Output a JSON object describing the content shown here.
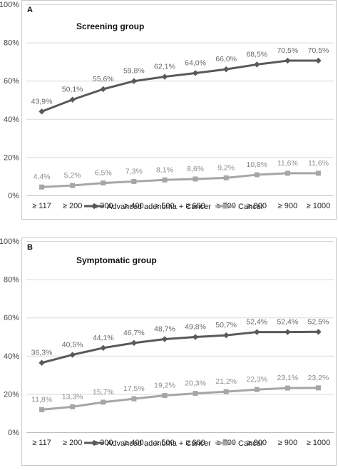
{
  "colors": {
    "dark_series": "#595959",
    "light_series": "#a6a6a6",
    "dark_label": "#666666",
    "light_label": "#8c8c8c",
    "grid": "#d9d9d9",
    "axis": "#bfbfbf",
    "border": "#c8c8c8"
  },
  "chart_data": [
    {
      "type": "line",
      "panel": "A",
      "title": "Screening group",
      "categories": [
        "≥ 117",
        "≥ 200",
        "≥ 300",
        "≥ 400",
        "≥ 500",
        "≥ 600",
        "≥ 700",
        "≥ 800",
        "≥ 900",
        "≥ 1000"
      ],
      "yticks": [
        "0%",
        "20%",
        "40%",
        "60%",
        "80%",
        "100%"
      ],
      "ylim": [
        0,
        100
      ],
      "grid": true,
      "legend_position": "bottom",
      "series": [
        {
          "name": "Advanced adenoma + Cancer",
          "marker": "diamond",
          "values": [
            43.9,
            50.1,
            55.6,
            59.8,
            62.1,
            64.0,
            66.0,
            68.5,
            70.5,
            70.5
          ],
          "labels": [
            "43,9%",
            "50,1%",
            "55,6%",
            "59,8%",
            "62,1%",
            "64,0%",
            "66,0%",
            "68,5%",
            "70,5%",
            "70,5%"
          ]
        },
        {
          "name": "Cancer",
          "marker": "square",
          "values": [
            4.4,
            5.2,
            6.5,
            7.3,
            8.1,
            8.6,
            9.2,
            10.8,
            11.6,
            11.6
          ],
          "labels": [
            "4,4%",
            "5,2%",
            "6,5%",
            "7,3%",
            "8,1%",
            "8,6%",
            "9,2%",
            "10,8%",
            "11,6%",
            "11,6%"
          ]
        }
      ]
    },
    {
      "type": "line",
      "panel": "B",
      "title": "Symptomatic group",
      "categories": [
        "≥ 117",
        "≥ 200",
        "≥ 300",
        "≥ 400",
        "≥ 500",
        "≥ 600",
        "≥ 700",
        "≥ 800",
        "≥ 900",
        "≥ 1000"
      ],
      "yticks": [
        "0%",
        "20%",
        "40%",
        "60%",
        "80%",
        "100%"
      ],
      "ylim": [
        0,
        100
      ],
      "grid": true,
      "legend_position": "bottom",
      "series": [
        {
          "name": "Advanced adenoma + Cancer",
          "marker": "diamond",
          "values": [
            36.3,
            40.5,
            44.1,
            46.7,
            48.7,
            49.8,
            50.7,
            52.4,
            52.4,
            52.5
          ],
          "labels": [
            "36,3%",
            "40,5%",
            "44,1%",
            "46,7%",
            "48,7%",
            "49,8%",
            "50,7%",
            "52,4%",
            "52,4%",
            "52,5%"
          ]
        },
        {
          "name": "Cancer",
          "marker": "square",
          "values": [
            11.8,
            13.3,
            15.7,
            17.5,
            19.2,
            20.3,
            21.2,
            22.3,
            23.1,
            23.2
          ],
          "labels": [
            "11,8%",
            "13,3%",
            "15,7%",
            "17,5%",
            "19,2%",
            "20,3%",
            "21,2%",
            "22,3%",
            "23,1%",
            "23,2%"
          ]
        }
      ]
    }
  ]
}
